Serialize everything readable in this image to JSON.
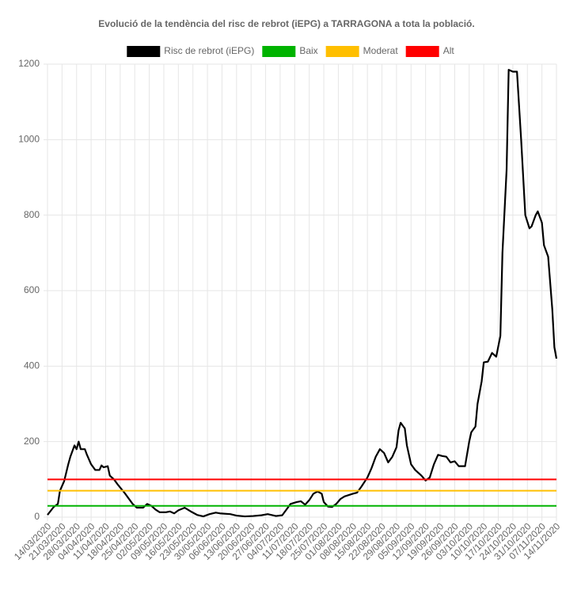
{
  "chart_data": {
    "type": "line",
    "title": "Evolució de la tendència del risc de rebrot (iEPG) a TARRAGONA a tota la població.",
    "x": [
      "14/03/2020",
      "17/03/2020",
      "19/03/2020",
      "20/03/2020",
      "22/03/2020",
      "24/03/2020",
      "25/03/2020",
      "27/03/2020",
      "28/03/2020",
      "29/03/2020",
      "30/03/2020",
      "01/04/2020",
      "02/04/2020",
      "04/04/2020",
      "06/04/2020",
      "08/04/2020",
      "09/04/2020",
      "10/04/2020",
      "12/04/2020",
      "13/04/2020",
      "15/04/2020",
      "17/04/2020",
      "20/04/2020",
      "22/04/2020",
      "24/04/2020",
      "26/04/2020",
      "29/04/2020",
      "01/05/2020",
      "03/05/2020",
      "05/05/2020",
      "07/05/2020",
      "10/05/2020",
      "12/05/2020",
      "14/05/2020",
      "16/05/2020",
      "19/05/2020",
      "22/05/2020",
      "25/05/2020",
      "28/05/2020",
      "31/05/2020",
      "03/06/2020",
      "05/06/2020",
      "10/06/2020",
      "13/06/2020",
      "17/06/2020",
      "21/06/2020",
      "25/06/2020",
      "28/06/2020",
      "02/07/2020",
      "05/07/2020",
      "07/07/2020",
      "09/07/2020",
      "12/07/2020",
      "14/07/2020",
      "16/07/2020",
      "18/07/2020",
      "20/07/2020",
      "22/07/2020",
      "24/07/2020",
      "25/07/2020",
      "27/07/2020",
      "29/07/2020",
      "31/07/2020",
      "02/08/2020",
      "04/08/2020",
      "08/08/2020",
      "10/08/2020",
      "12/08/2020",
      "15/08/2020",
      "17/08/2020",
      "19/08/2020",
      "21/08/2020",
      "23/08/2020",
      "25/08/2020",
      "27/08/2020",
      "29/08/2020",
      "30/08/2020",
      "31/08/2020",
      "02/09/2020",
      "03/09/2020",
      "05/09/2020",
      "07/09/2020",
      "10/09/2020",
      "12/09/2020",
      "14/09/2020",
      "16/09/2020",
      "18/09/2020",
      "20/09/2020",
      "22/09/2020",
      "24/09/2020",
      "26/09/2020",
      "28/09/2020",
      "01/10/2020",
      "03/10/2020",
      "04/10/2020",
      "06/10/2020",
      "07/10/2020",
      "09/10/2020",
      "10/10/2020",
      "12/10/2020",
      "14/10/2020",
      "16/10/2020",
      "18/10/2020",
      "19/10/2020",
      "21/10/2020",
      "22/10/2020",
      "24/10/2020",
      "26/10/2020",
      "28/10/2020",
      "30/10/2020",
      "01/11/2020",
      "02/11/2020",
      "04/11/2020",
      "05/11/2020",
      "07/11/2020",
      "08/11/2020",
      "10/11/2020",
      "12/11/2020",
      "13/11/2020",
      "14/11/2020"
    ],
    "series": [
      {
        "name": "Risc de rebrot (iEPG)",
        "color": "#000000",
        "values": [
          6,
          27,
          35,
          70,
          95,
          140,
          160,
          190,
          180,
          200,
          180,
          180,
          165,
          140,
          125,
          125,
          137,
          132,
          135,
          110,
          100,
          85,
          65,
          50,
          35,
          25,
          25,
          35,
          30,
          20,
          13,
          13,
          15,
          10,
          18,
          25,
          15,
          6,
          2,
          8,
          12,
          10,
          8,
          4,
          2,
          3,
          5,
          8,
          3,
          5,
          20,
          35,
          40,
          42,
          33,
          45,
          62,
          68,
          62,
          40,
          28,
          27,
          35,
          48,
          55,
          62,
          65,
          80,
          105,
          130,
          160,
          180,
          170,
          145,
          160,
          185,
          230,
          250,
          235,
          190,
          140,
          125,
          110,
          97,
          105,
          140,
          165,
          162,
          160,
          145,
          148,
          135,
          135,
          200,
          225,
          240,
          300,
          360,
          410,
          412,
          435,
          425,
          480,
          700,
          920,
          1185,
          1180,
          1180,
          1000,
          800,
          765,
          770,
          800,
          810,
          780,
          720,
          690,
          550,
          450,
          420
        ]
      },
      {
        "name": "Baix",
        "color": "#00b300",
        "value": 30
      },
      {
        "name": "Moderat",
        "color": "#ffbf00",
        "value": 70
      },
      {
        "name": "Alt",
        "color": "#ff0000",
        "value": 100
      }
    ],
    "xlim": [
      "14/03/2020",
      "14/11/2020"
    ],
    "xticks": [
      "14/03/2020",
      "21/03/2020",
      "28/03/2020",
      "04/04/2020",
      "11/04/2020",
      "18/04/2020",
      "25/04/2020",
      "02/05/2020",
      "09/05/2020",
      "16/05/2020",
      "23/05/2020",
      "30/05/2020",
      "06/06/2020",
      "13/06/2020",
      "20/06/2020",
      "27/06/2020",
      "04/07/2020",
      "11/07/2020",
      "18/07/2020",
      "25/07/2020",
      "01/08/2020",
      "08/08/2020",
      "15/08/2020",
      "22/08/2020",
      "29/08/2020",
      "05/09/2020",
      "12/09/2020",
      "19/09/2020",
      "26/09/2020",
      "03/10/2020",
      "10/10/2020",
      "17/10/2020",
      "24/10/2020",
      "31/10/2020",
      "07/11/2020",
      "14/11/2020"
    ],
    "ylim": [
      0,
      1200
    ],
    "yticks": [
      0,
      200,
      400,
      600,
      800,
      1000,
      1200
    ],
    "grid": true
  }
}
